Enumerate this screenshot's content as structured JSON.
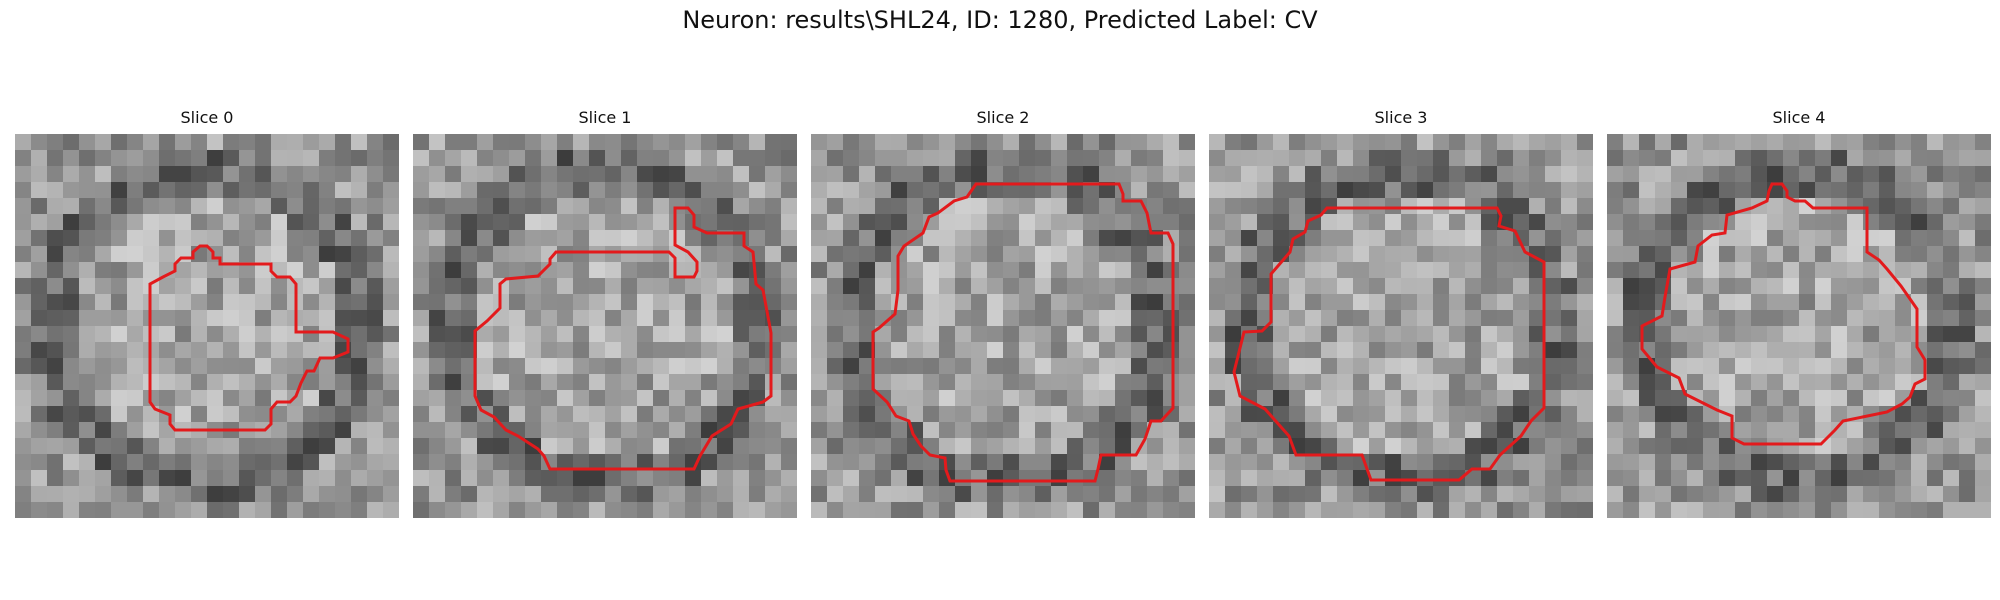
{
  "figure": {
    "title": "Neuron: results\\SHL24, ID: 1280, Predicted Label: CV",
    "contour_color": "#e31a1c",
    "panels": [
      {
        "label": "Slice 0"
      },
      {
        "label": "Slice 1"
      },
      {
        "label": "Slice 2"
      },
      {
        "label": "Slice 3"
      },
      {
        "label": "Slice 4"
      }
    ]
  }
}
